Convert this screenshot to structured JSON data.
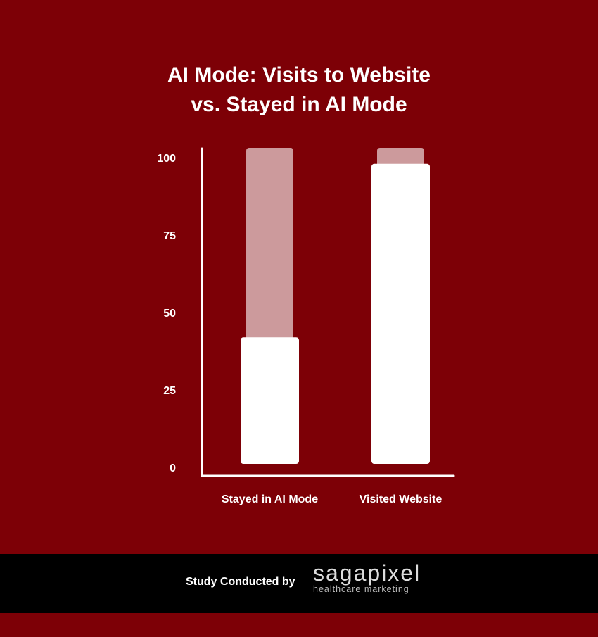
{
  "colors": {
    "background": "#7d0006",
    "bar": "#ffffff",
    "track": "#cc9a9c",
    "footer": "#000000"
  },
  "chart_data": {
    "type": "bar",
    "title": "AI Mode: Visits to Website vs. Stayed in AI Mode",
    "title_lines": [
      "AI Mode: Visits to Website",
      "vs. Stayed in AI Mode"
    ],
    "categories": [
      "Stayed in AI Mode",
      "Visited Website"
    ],
    "values": [
      42,
      98
    ],
    "ylim": [
      0,
      100
    ],
    "yticks": [
      0,
      25,
      50,
      75,
      100
    ],
    "ytick_labels": [
      "0",
      "25",
      "50",
      "75",
      "100"
    ],
    "grid": false,
    "xlabel": "",
    "ylabel": ""
  },
  "footer": {
    "credit": "Study Conducted by",
    "logo_name": "sagapixel",
    "logo_tagline": "healthcare marketing"
  }
}
